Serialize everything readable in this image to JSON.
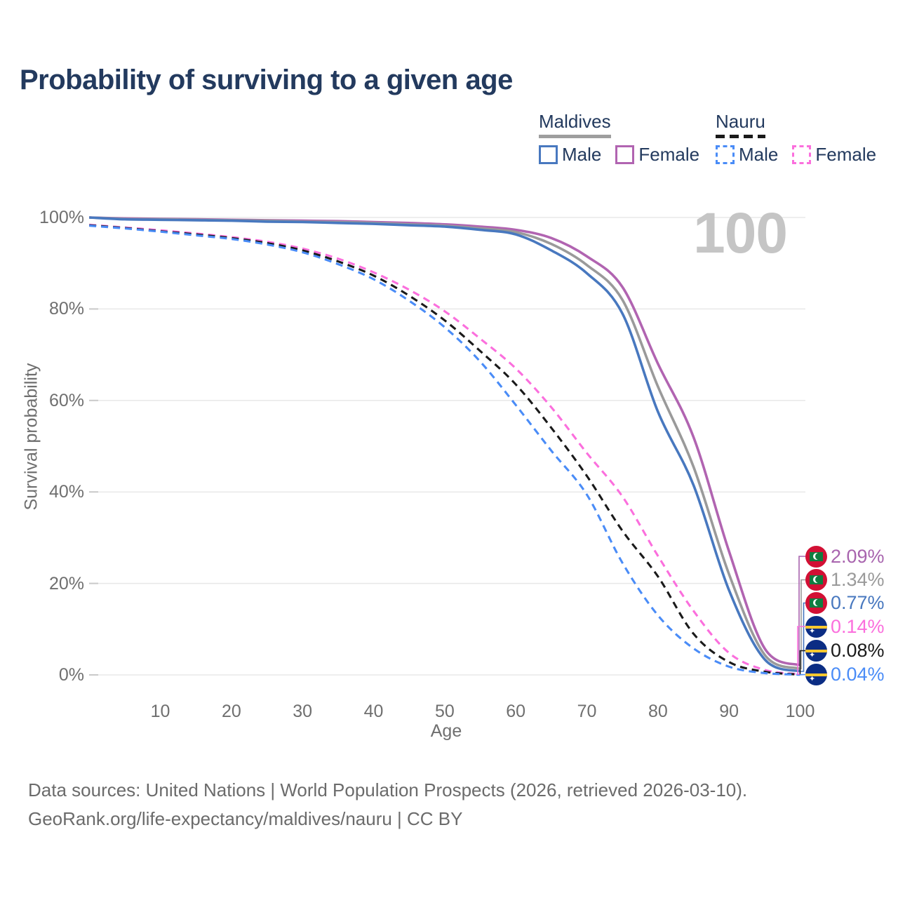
{
  "header": {
    "title": "Probability of surviving to a given age"
  },
  "legend": {
    "groups": [
      {
        "label": "Maldives",
        "line_style": "solid",
        "underline_color": "#9e9e9e",
        "items": [
          {
            "label": "Male",
            "color": "#4878bf"
          },
          {
            "label": "Female",
            "color": "#b164b1"
          }
        ]
      },
      {
        "label": "Nauru",
        "line_style": "dashed",
        "underline_color": "#1a1a1a",
        "items": [
          {
            "label": "Male",
            "color": "#4a8cf7"
          },
          {
            "label": "Female",
            "color": "#fb6fdd"
          }
        ]
      }
    ]
  },
  "chart_data": {
    "type": "line",
    "title": "Probability of surviving to a given age",
    "xlabel": "Age",
    "ylabel": "Survival probability",
    "watermark": "100",
    "xlim": [
      0,
      100
    ],
    "ylim": [
      0,
      100
    ],
    "grid": "horizontal",
    "legend_position": "top-right",
    "x_ticks": [
      "10",
      "20",
      "30",
      "40",
      "50",
      "60",
      "70",
      "80",
      "90",
      "100"
    ],
    "x_tick_ages": [
      10,
      20,
      30,
      40,
      50,
      60,
      70,
      80,
      90,
      100
    ],
    "y_ticks": [
      "0%",
      "20%",
      "40%",
      "60%",
      "80%",
      "100%"
    ],
    "y_tick_values": [
      0,
      20,
      40,
      60,
      80,
      100
    ],
    "x": [
      0,
      5,
      10,
      15,
      20,
      25,
      30,
      35,
      40,
      45,
      50,
      55,
      60,
      65,
      70,
      75,
      80,
      85,
      90,
      95,
      100
    ],
    "series": [
      {
        "name": "Maldives Female",
        "country": "Maldives",
        "sex": "Female",
        "style": "solid",
        "color": "#b164b1",
        "values": [
          100,
          99.8,
          99.7,
          99.6,
          99.5,
          99.4,
          99.3,
          99.2,
          99.0,
          98.8,
          98.5,
          98.0,
          97.3,
          95.5,
          91.5,
          84.8,
          68.0,
          52.0,
          27.0,
          5.8,
          2.09
        ]
      },
      {
        "name": "Maldives Both sexes",
        "country": "Maldives",
        "sex": "Both",
        "style": "solid",
        "color": "#9a9a9a",
        "values": [
          100,
          99.7,
          99.6,
          99.5,
          99.4,
          99.3,
          99.1,
          99.0,
          98.8,
          98.5,
          98.2,
          97.6,
          96.8,
          94.2,
          89.6,
          82.0,
          63.0,
          45.5,
          22.0,
          4.4,
          1.34
        ]
      },
      {
        "name": "Maldives Male",
        "country": "Maldives",
        "sex": "Male",
        "style": "solid",
        "color": "#4878bf",
        "values": [
          100,
          99.6,
          99.5,
          99.4,
          99.3,
          99.1,
          99.0,
          98.8,
          98.6,
          98.3,
          98.0,
          97.3,
          96.3,
          92.8,
          87.8,
          79.0,
          57.5,
          41.5,
          18.5,
          3.4,
          0.77
        ]
      },
      {
        "name": "Nauru Female",
        "country": "Nauru",
        "sex": "Female",
        "style": "dashed",
        "color": "#fb6fdd",
        "values": [
          98.4,
          97.8,
          97.2,
          96.5,
          95.7,
          94.7,
          93.2,
          91.0,
          88.0,
          84.2,
          79.5,
          73.5,
          67.0,
          58.5,
          48.5,
          39.0,
          26.0,
          14.0,
          4.8,
          1.1,
          0.14
        ]
      },
      {
        "name": "Nauru Both sexes",
        "country": "Nauru",
        "sex": "Both",
        "style": "dashed",
        "color": "#1a1a1a",
        "values": [
          98.3,
          97.7,
          97.0,
          96.3,
          95.5,
          94.4,
          92.8,
          90.4,
          87.3,
          82.9,
          77.5,
          70.8,
          63.5,
          54.0,
          43.5,
          31.5,
          21.5,
          9.0,
          2.8,
          0.7,
          0.08
        ]
      },
      {
        "name": "Nauru Male",
        "country": "Nauru",
        "sex": "Male",
        "style": "dashed",
        "color": "#4a8cf7",
        "values": [
          98.2,
          97.6,
          96.9,
          96.1,
          95.3,
          94.1,
          92.4,
          89.8,
          86.5,
          81.8,
          76.0,
          68.5,
          59.0,
          49.0,
          39.4,
          24.5,
          13.0,
          5.8,
          1.8,
          0.4,
          0.04
        ]
      }
    ],
    "end_labels": [
      {
        "value": "2.09%",
        "color": "#a864ae",
        "flag": "maldives",
        "series": "Maldives Female",
        "final_pct": 2.09
      },
      {
        "value": "1.34%",
        "color": "#9a9a9a",
        "flag": "maldives",
        "series": "Maldives Both sexes",
        "final_pct": 1.34
      },
      {
        "value": "0.77%",
        "color": "#4878bf",
        "flag": "maldives",
        "series": "Maldives Male",
        "final_pct": 0.77
      },
      {
        "value": "0.14%",
        "color": "#fb6fdd",
        "flag": "nauru",
        "series": "Nauru Female",
        "final_pct": 0.14
      },
      {
        "value": "0.08%",
        "color": "#1a1a1a",
        "flag": "nauru",
        "series": "Nauru Both sexes",
        "final_pct": 0.08
      },
      {
        "value": "0.04%",
        "color": "#4a8cf7",
        "flag": "nauru",
        "series": "Nauru Male",
        "final_pct": 0.04
      }
    ],
    "flag_colors": {
      "maldives": {
        "background": "#d21034",
        "rect": "#0f7d40",
        "crescent": "#ffffff"
      },
      "nauru": {
        "background": "#0b2d84",
        "stripe": "#fec82f",
        "star": "#ffffff"
      }
    }
  },
  "icons": {
    "nauru_star": "✦",
    "maldives_crescent": "crescent"
  },
  "footer": {
    "line1": "Data sources: United Nations | World Population Prospects (2026, retrieved 2026-03-10).",
    "line2": "GeoRank.org/life-expectancy/maldives/nauru | CC BY"
  }
}
